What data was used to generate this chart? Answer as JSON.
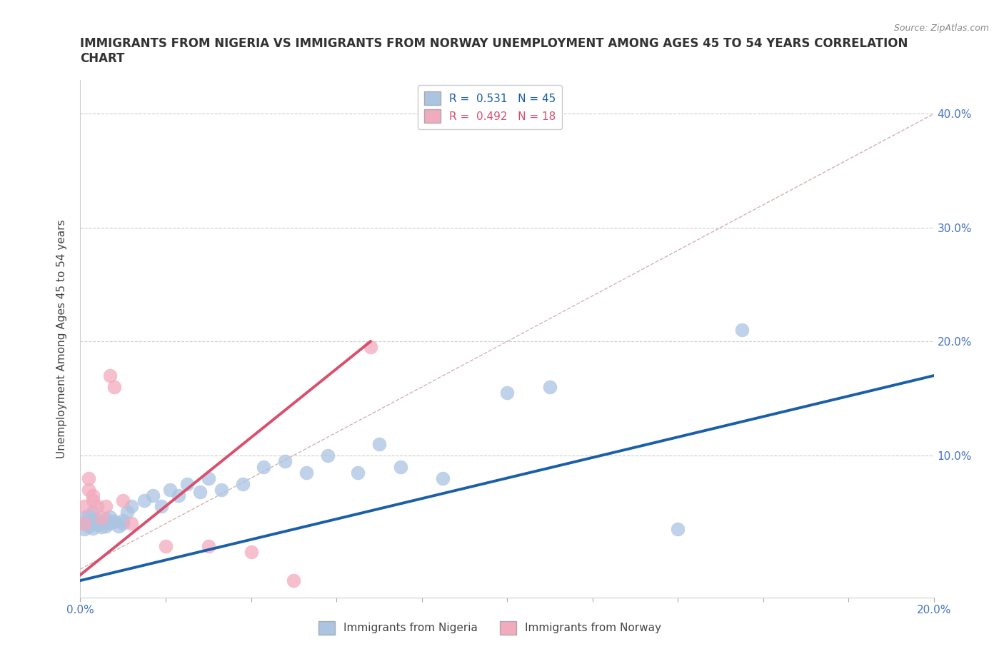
{
  "title": "IMMIGRANTS FROM NIGERIA VS IMMIGRANTS FROM NORWAY UNEMPLOYMENT AMONG AGES 45 TO 54 YEARS CORRELATION\nCHART",
  "source_text": "Source: ZipAtlas.com",
  "ylabel": "Unemployment Among Ages 45 to 54 years",
  "xlim": [
    0.0,
    0.2
  ],
  "ylim": [
    -0.025,
    0.43
  ],
  "yticks": [
    0.0,
    0.1,
    0.2,
    0.3,
    0.4
  ],
  "ytick_labels": [
    "",
    "10.0%",
    "20.0%",
    "30.0%",
    "40.0%"
  ],
  "xticks": [
    0.0,
    0.02,
    0.04,
    0.06,
    0.08,
    0.1,
    0.12,
    0.14,
    0.16,
    0.18,
    0.2
  ],
  "xtick_labels": [
    "0.0%",
    "",
    "",
    "",
    "",
    "",
    "",
    "",
    "",
    "",
    "20.0%"
  ],
  "nigeria_R": 0.531,
  "nigeria_N": 45,
  "norway_R": 0.492,
  "norway_N": 18,
  "nigeria_color": "#aac4e2",
  "norway_color": "#f2aabe",
  "nigeria_line_color": "#1a5fa8",
  "norway_line_color": "#d94f6e",
  "trendline_color": "#c8a0a0",
  "background_color": "#ffffff",
  "nigeria_x": [
    0.001,
    0.001,
    0.001,
    0.002,
    0.002,
    0.002,
    0.003,
    0.003,
    0.003,
    0.004,
    0.004,
    0.005,
    0.005,
    0.006,
    0.006,
    0.007,
    0.007,
    0.008,
    0.009,
    0.01,
    0.01,
    0.011,
    0.012,
    0.015,
    0.017,
    0.019,
    0.021,
    0.023,
    0.025,
    0.028,
    0.03,
    0.033,
    0.038,
    0.043,
    0.048,
    0.053,
    0.058,
    0.065,
    0.07,
    0.075,
    0.085,
    0.1,
    0.11,
    0.14,
    0.155
  ],
  "nigeria_y": [
    0.035,
    0.04,
    0.045,
    0.038,
    0.042,
    0.047,
    0.036,
    0.044,
    0.05,
    0.039,
    0.043,
    0.037,
    0.041,
    0.038,
    0.044,
    0.04,
    0.046,
    0.042,
    0.038,
    0.043,
    0.04,
    0.05,
    0.055,
    0.06,
    0.065,
    0.055,
    0.07,
    0.065,
    0.075,
    0.068,
    0.08,
    0.07,
    0.075,
    0.09,
    0.095,
    0.085,
    0.1,
    0.085,
    0.11,
    0.09,
    0.08,
    0.155,
    0.16,
    0.035,
    0.21
  ],
  "norway_x": [
    0.001,
    0.001,
    0.002,
    0.002,
    0.003,
    0.003,
    0.004,
    0.005,
    0.006,
    0.007,
    0.008,
    0.01,
    0.012,
    0.02,
    0.03,
    0.04,
    0.05,
    0.068
  ],
  "norway_y": [
    0.04,
    0.055,
    0.07,
    0.08,
    0.06,
    0.065,
    0.055,
    0.045,
    0.055,
    0.17,
    0.16,
    0.06,
    0.04,
    0.02,
    0.02,
    0.015,
    -0.01,
    0.195
  ],
  "norway_line_x": [
    0.0,
    0.068
  ],
  "norway_line_y": [
    -0.005,
    0.2
  ],
  "nigeria_line_x": [
    0.0,
    0.2
  ],
  "nigeria_line_y": [
    -0.01,
    0.17
  ]
}
